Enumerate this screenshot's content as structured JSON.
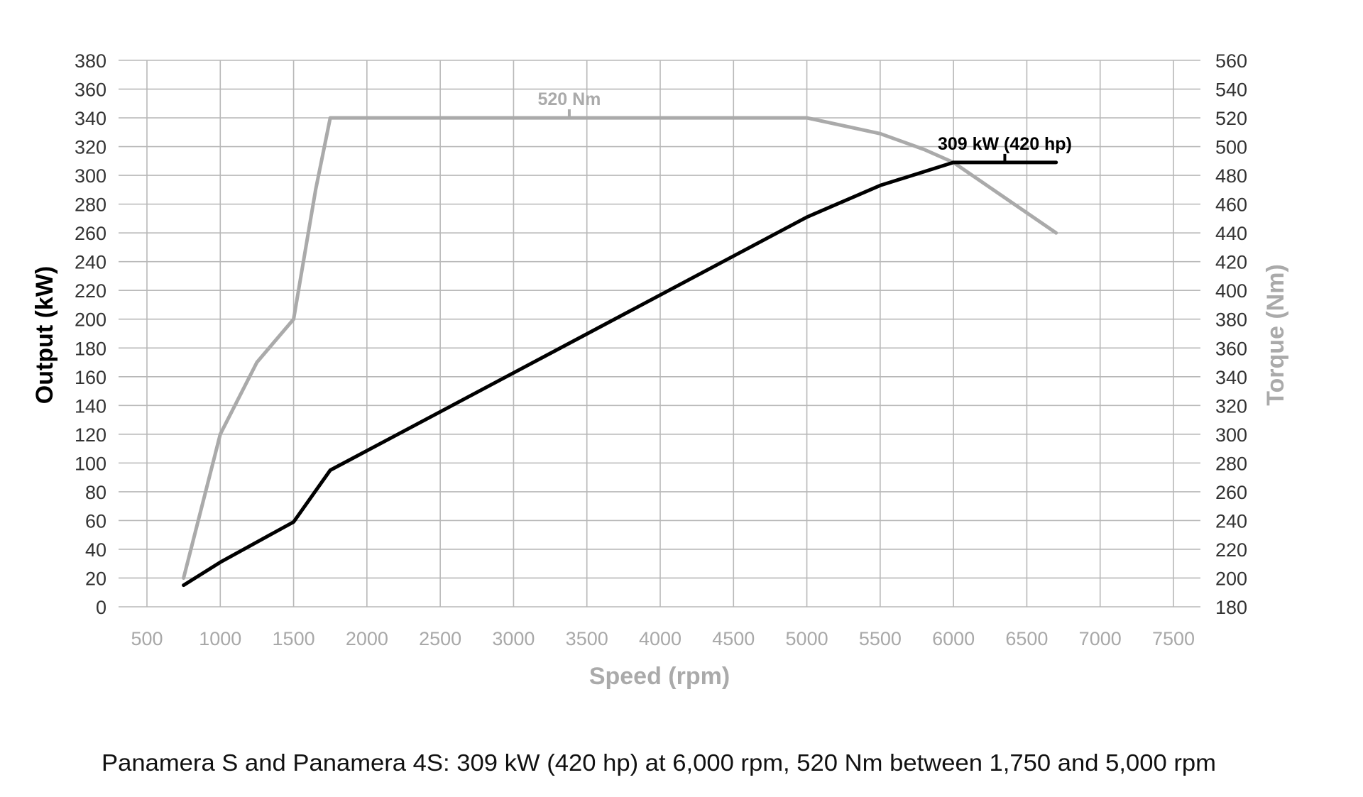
{
  "chart_data": {
    "type": "line",
    "title": "",
    "caption": "Panamera S and Panamera 4S: 309 kW (420 hp) at 6,000 rpm, 520 Nm between 1,750 and 5,000 rpm",
    "xlabel": "Speed (rpm)",
    "ylabel": "Output (kW)",
    "y2label": "Torque (Nm)",
    "xlim": [
      500,
      7500
    ],
    "ylim": [
      0,
      380
    ],
    "y2lim": [
      180,
      560
    ],
    "xticks": [
      500,
      1000,
      1500,
      2000,
      2500,
      3000,
      3500,
      4000,
      4500,
      5000,
      5500,
      6000,
      6500,
      7000,
      7500
    ],
    "yticks": [
      0,
      20,
      40,
      60,
      80,
      100,
      120,
      140,
      160,
      180,
      200,
      220,
      240,
      260,
      280,
      300,
      320,
      340,
      360,
      380
    ],
    "y2ticks": [
      180,
      200,
      220,
      240,
      260,
      280,
      300,
      320,
      340,
      360,
      380,
      400,
      420,
      440,
      460,
      480,
      500,
      520,
      540,
      560
    ],
    "grid": true,
    "series": [
      {
        "name": "Output (kW)",
        "axis": "left",
        "color": "#000000",
        "x": [
          750,
          1000,
          1250,
          1500,
          1750,
          5000,
          5500,
          6000,
          6700
        ],
        "y": [
          15,
          31,
          45,
          59,
          95,
          271,
          293,
          309,
          309
        ]
      },
      {
        "name": "Torque (Nm)",
        "axis": "right",
        "color": "#aaaaaa",
        "x": [
          750,
          1000,
          1250,
          1500,
          1650,
          1750,
          5000,
          5500,
          5800,
          6000,
          6700
        ],
        "y": [
          200,
          300,
          350,
          380,
          470,
          520,
          520,
          509,
          498,
          489,
          440
        ]
      }
    ],
    "annotations": [
      {
        "text": "520 Nm",
        "x": 3380,
        "axis": "right",
        "y": 520,
        "color": "#aaaaaa"
      },
      {
        "text": "309 kW (420 hp)",
        "x": 6350,
        "axis": "left",
        "y": 309,
        "color": "#000000"
      }
    ]
  }
}
